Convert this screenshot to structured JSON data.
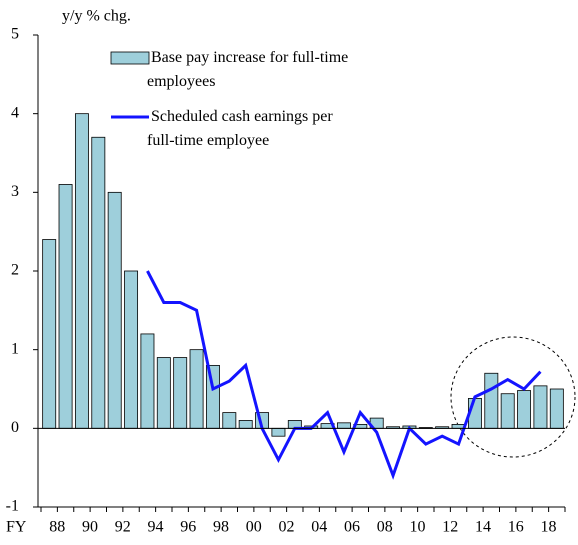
{
  "chart_data": {
    "type": "bar",
    "y_label": "y/y % chg.",
    "x_label": "FY",
    "categories": [
      "88",
      null,
      "90",
      null,
      "92",
      null,
      "94",
      null,
      "96",
      null,
      "98",
      null,
      "00",
      null,
      "02",
      null,
      "04",
      null,
      "06",
      null,
      "08",
      null,
      "10",
      null,
      "12",
      null,
      "14",
      null,
      "16",
      null,
      "18",
      null
    ],
    "series": [
      {
        "name": "Base pay increase for full-time employees",
        "type": "bar",
        "color": "#9ecfdb",
        "values": [
          2.4,
          3.1,
          4.0,
          3.7,
          3.0,
          2.0,
          1.2,
          0.9,
          0.9,
          1.0,
          0.8,
          0.2,
          0.1,
          0.2,
          -0.1,
          0.1,
          0.03,
          0.06,
          0.07,
          0.05,
          0.13,
          0.02,
          0.03,
          0.01,
          0.02,
          0.05,
          0.38,
          0.7,
          0.44,
          0.48,
          0.54,
          0.5
        ]
      },
      {
        "name": "Scheduled cash earnings per full-time employee",
        "type": "line",
        "color": "#1414ff",
        "values": [
          null,
          null,
          null,
          null,
          null,
          null,
          2.0,
          1.6,
          1.6,
          1.5,
          0.5,
          0.6,
          0.8,
          0.0,
          -0.4,
          0.0,
          0.0,
          0.2,
          -0.3,
          0.2,
          -0.05,
          -0.6,
          0.0,
          -0.2,
          -0.1,
          -0.2,
          0.4,
          0.5,
          0.62,
          0.5,
          0.72,
          null
        ]
      }
    ],
    "ylim": [
      -1,
      5
    ],
    "yticks": [
      -1,
      0,
      1,
      2,
      3,
      4,
      5
    ]
  }
}
